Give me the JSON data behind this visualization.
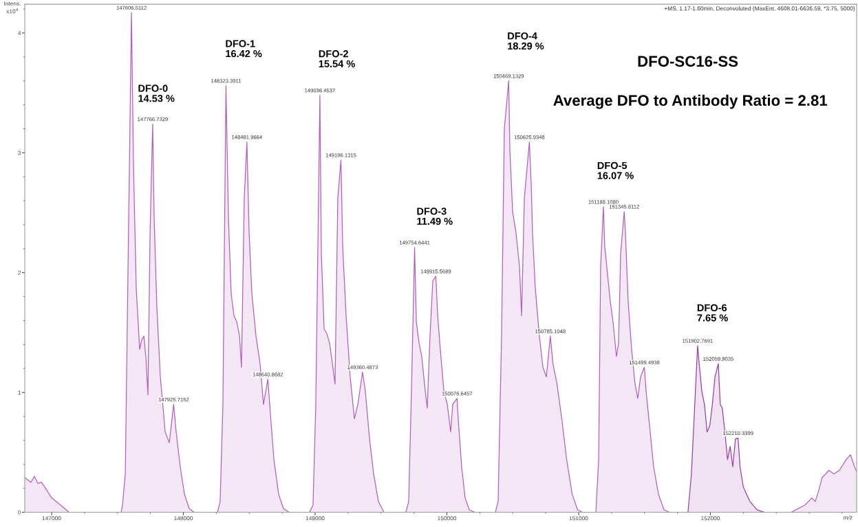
{
  "chart_data": {
    "type": "area",
    "title": "DFO-SC16-SS",
    "subtitle": "Average DFO to Antibody Ratio = 2.81",
    "xlabel": "m/z",
    "ylabel": "Intens.\nx10$^{4}$",
    "xlim": [
      146796,
      153110
    ],
    "ylim": [
      0,
      4.24
    ],
    "xticks": [
      147000,
      148000,
      149000,
      150000,
      151000,
      152000
    ],
    "yticks": [
      0,
      1,
      2,
      3,
      4
    ],
    "series": [
      {
        "color": "#b35fbe",
        "x": [
          146796,
          146843,
          146869,
          146896,
          146922,
          146948,
          147000,
          147078,
          147131,
          147527,
          147538,
          147559,
          147580,
          147606,
          147621,
          147642,
          147668,
          147684,
          147700,
          147715,
          147731,
          147747,
          147767,
          147778,
          147799,
          147825,
          147862,
          147893,
          147926,
          147945,
          147976,
          148008,
          148044,
          148081,
          148259,
          148279,
          148300,
          148323,
          148342,
          148363,
          148384,
          148405,
          148426,
          148441,
          148462,
          148482,
          148499,
          148520,
          148551,
          148582,
          148608,
          148641,
          148655,
          148687,
          148723,
          148760,
          148802,
          148958,
          148984,
          149005,
          149036,
          149047,
          149068,
          149089,
          149110,
          149131,
          149151,
          149172,
          149196,
          149209,
          149235,
          149266,
          149298,
          149324,
          149360,
          149381,
          149413,
          149444,
          149480,
          149522,
          149689,
          149710,
          149731,
          149755,
          149768,
          149789,
          149809,
          149836,
          149851,
          149872,
          149893,
          149916,
          149930,
          149950,
          149977,
          150003,
          150029,
          150044,
          150077,
          150086,
          150112,
          150138,
          150170,
          150212,
          150368,
          150389,
          150415,
          150436,
          150469,
          150478,
          150499,
          150525,
          150551,
          150567,
          150588,
          150626,
          150640,
          150650,
          150671,
          150702,
          150729,
          150755,
          150785,
          150805,
          150836,
          150872,
          150909,
          150951,
          150992,
          151029,
          151131,
          151152,
          151167,
          151188,
          151198,
          151219,
          151240,
          151261,
          151287,
          151303,
          151319,
          151346,
          151355,
          151376,
          151402,
          151428,
          151449,
          151470,
          151499,
          151512,
          151543,
          151569,
          151606,
          151648,
          151689,
          151760,
          152614,
          152666,
          152718,
          152770,
          152796,
          152822,
          152848,
          152875,
          152901,
          152937,
          152979,
          153031,
          153063,
          153094,
          153110
        ],
        "values": [
          0.29,
          0.25,
          0.3,
          0.24,
          0.25,
          0.21,
          0.12,
          0.05,
          0,
          0,
          0.06,
          0.32,
          2.05,
          4.17,
          2.91,
          1.87,
          1.36,
          1.44,
          1.47,
          1.3,
          0.98,
          2.33,
          3.24,
          2.45,
          1.7,
          1.13,
          0.67,
          0.58,
          0.9,
          0.67,
          0.38,
          0.15,
          0.03,
          0,
          0,
          0.09,
          0.9,
          3.56,
          2.45,
          1.82,
          1.64,
          1.59,
          1.47,
          1.21,
          2.62,
          3.09,
          2.33,
          1.82,
          1.47,
          1.24,
          0.9,
          1.11,
          0.9,
          0.44,
          0.15,
          0.03,
          0,
          0,
          0.06,
          0.9,
          3.48,
          2.16,
          1.53,
          1.49,
          1.41,
          1.24,
          1.07,
          2.62,
          2.94,
          2.22,
          1.64,
          1.13,
          0.78,
          0.9,
          1.17,
          1.01,
          0.61,
          0.32,
          0.09,
          0,
          0,
          0.09,
          1.01,
          2.21,
          1.59,
          1.41,
          1.3,
          1.01,
          0.87,
          1.47,
          1.93,
          1.97,
          1.64,
          1.36,
          1.01,
          0.9,
          0.67,
          0.9,
          0.95,
          0.78,
          0.38,
          0.12,
          0.02,
          0,
          0,
          0.09,
          1.47,
          3.2,
          3.6,
          3.02,
          2.51,
          2.33,
          2.05,
          1.64,
          2.62,
          3.09,
          2.74,
          2.33,
          1.87,
          1.47,
          1.21,
          1.13,
          1.47,
          1.24,
          1.07,
          0.78,
          0.44,
          0.15,
          0.02,
          0,
          0,
          0.44,
          2.05,
          2.55,
          2.22,
          1.99,
          1.76,
          1.59,
          1.3,
          1.41,
          2.16,
          2.51,
          2.33,
          1.76,
          1.36,
          1.07,
          0.95,
          1.13,
          1.21,
          1.01,
          0.67,
          0.38,
          0.15,
          0.02,
          0,
          null,
          0,
          0.03,
          0.06,
          0.12,
          0.09,
          0.18,
          0.29,
          0.32,
          0.35,
          0.32,
          0.35,
          0.44,
          0.48,
          0.38,
          0.34
        ]
      },
      {
        "color": "#9a3fa6",
        "x": [
          151830,
          151856,
          151903,
          151915,
          151935,
          151955,
          151975,
          151995,
          152015,
          152035,
          152060,
          152075,
          152090,
          152110,
          152130,
          152150,
          152170,
          152190,
          152210,
          152225,
          152250,
          152300,
          152355,
          152410
        ],
        "values": [
          0,
          0.32,
          1.39,
          1.24,
          1.01,
          0.9,
          0.67,
          0.72,
          0.9,
          1.13,
          1.24,
          0.9,
          0.87,
          0.67,
          0.44,
          0.55,
          0.38,
          0.61,
          0.62,
          0.38,
          0.21,
          0.09,
          0.02,
          0
        ]
      }
    ],
    "annotations": [
      "+MS, 1.17-1.60min, Deconvoluted (MaxEnt, 4608.01-6636.59, *3.75, 5000)",
      "DFO-0\n14.53 %",
      "DFO-1\n16.42 %",
      "DFO-2\n15.54 %",
      "DFO-3\n11.49 %",
      "DFO-4\n18.29 %",
      "DFO-5\n16.07 %",
      "DFO-6\n7.65 %",
      {
        "text": "147606.5112",
        "x": 147606,
        "y": 4.17
      },
      {
        "text": "147766.7329",
        "x": 147767,
        "y": 3.24
      },
      {
        "text": "147925.7152",
        "x": 147926,
        "y": 0.9
      },
      {
        "text": "148323.3911",
        "x": 148323,
        "y": 3.56
      },
      {
        "text": "148481.9664",
        "x": 148482,
        "y": 3.09
      },
      {
        "text": "148640.8682",
        "x": 148641,
        "y": 1.11
      },
      {
        "text": "149036.4537",
        "x": 149036,
        "y": 3.48
      },
      {
        "text": "149196.1315",
        "x": 149196,
        "y": 2.94
      },
      {
        "text": "149360.4873",
        "x": 149360,
        "y": 1.17
      },
      {
        "text": "149754.6441",
        "x": 149755,
        "y": 2.21
      },
      {
        "text": "149915.5689",
        "x": 149916,
        "y": 1.97
      },
      {
        "text": "150076.6457",
        "x": 150077,
        "y": 0.95
      },
      {
        "text": "150469.1329",
        "x": 150469,
        "y": 3.6
      },
      {
        "text": "150625.9348",
        "x": 150626,
        "y": 3.09
      },
      {
        "text": "150785.1048",
        "x": 150785,
        "y": 1.47
      },
      {
        "text": "151188.1080",
        "x": 151188,
        "y": 2.55
      },
      {
        "text": "151345.8112",
        "x": 151346,
        "y": 2.51
      },
      {
        "text": "151499.4938",
        "x": 151499,
        "y": 1.21
      },
      {
        "text": "151902.7691",
        "x": 151903,
        "y": 1.39
      },
      {
        "text": "152059.9035",
        "x": 152060,
        "y": 1.24
      },
      {
        "text": "152210.3399",
        "x": 152210,
        "y": 0.62
      }
    ]
  }
}
